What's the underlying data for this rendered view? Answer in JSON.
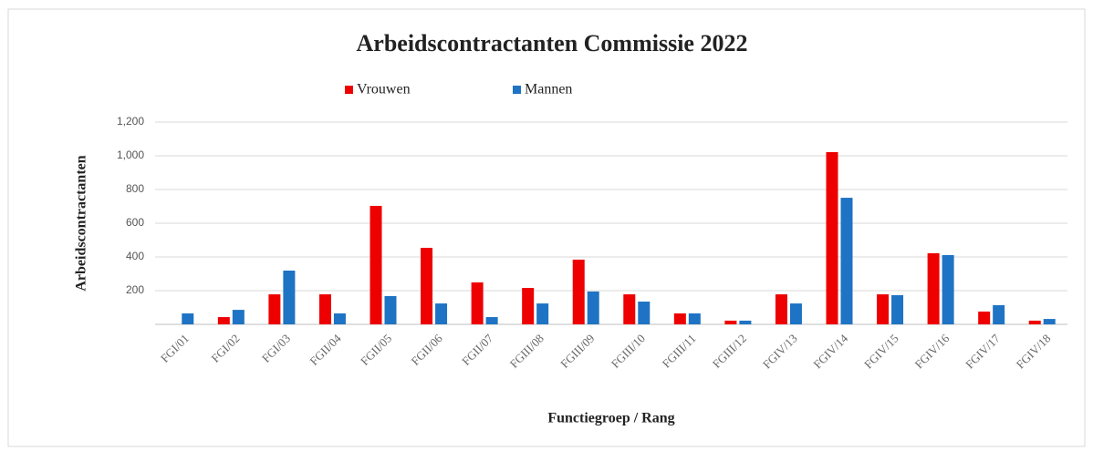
{
  "chart_data": {
    "type": "bar",
    "title": "Arbeidscontractanten Commissie 2022",
    "x_label": "Functiegroep / Rang",
    "y_label": "Arbeidscontractanten",
    "categories": [
      "FGI/01",
      "FGI/02",
      "FGI/03",
      "FGII/04",
      "FGII/05",
      "FGII/06",
      "FGII/07",
      "FGIII/08",
      "FGIII/09",
      "FGIII/10",
      "FGIII/11",
      "FGIII/12",
      "FGIV/13",
      "FGIV/14",
      "FGIV/15",
      "FGIV/16",
      "FGIV/17",
      "FGIV/18"
    ],
    "series": [
      {
        "name": "Vrouwen",
        "color": "#ee0000",
        "values": [
          0,
          43,
          178,
          178,
          703,
          454,
          249,
          216,
          384,
          178,
          65,
          22,
          178,
          1022,
          178,
          422,
          76,
          22
        ]
      },
      {
        "name": "Mannen",
        "color": "#1f73c4",
        "values": [
          65,
          86,
          319,
          65,
          168,
          124,
          43,
          124,
          195,
          135,
          65,
          22,
          124,
          751,
          173,
          411,
          114,
          32
        ]
      }
    ],
    "ylim": [
      0,
      1200
    ],
    "yticks": [
      200,
      400,
      600,
      800,
      {
        "value": 1000,
        "label": "1,000"
      },
      {
        "value": 1200,
        "label": "1,200"
      }
    ],
    "grid": true,
    "legend": "top"
  }
}
